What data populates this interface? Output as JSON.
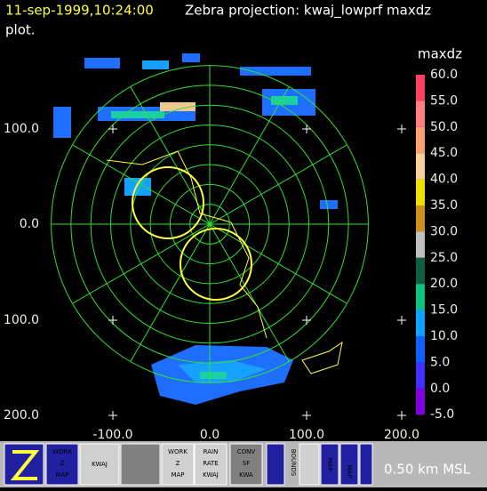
{
  "header": {
    "time": "11-sep-1999,10:24:00",
    "title": "Zebra projection: kwaj_lowprf maxdz",
    "title_cont": "plot."
  },
  "colorbar": {
    "field": "maxdz",
    "labels": [
      "60.0",
      "55.0",
      "50.0",
      "45.0",
      "40.0",
      "35.0",
      "30.0",
      "25.0",
      "20.0",
      "15.0",
      "10.0",
      "5.0",
      "0.0",
      "-5.0"
    ]
  },
  "axes": {
    "x_labels": [
      "-100.0",
      "0.0",
      "100.0",
      "200.0"
    ],
    "y_labels": [
      "100.0",
      "0.0",
      "100.0",
      "200.0"
    ]
  },
  "toolbar": {
    "work_map": [
      "WORK",
      "Z",
      "MAP"
    ],
    "work_map2": [
      "WORK",
      "Z",
      "MAP"
    ],
    "rain": [
      "RAIN",
      "RATE",
      "KWAJ"
    ],
    "conv": [
      "CONV",
      "SF",
      "KWA"
    ],
    "kwaj": "KWAJ",
    "bounds": "BOUNDS",
    "map1": "MAP",
    "map2": "MAP"
  },
  "status": "0.50 km MSL"
}
